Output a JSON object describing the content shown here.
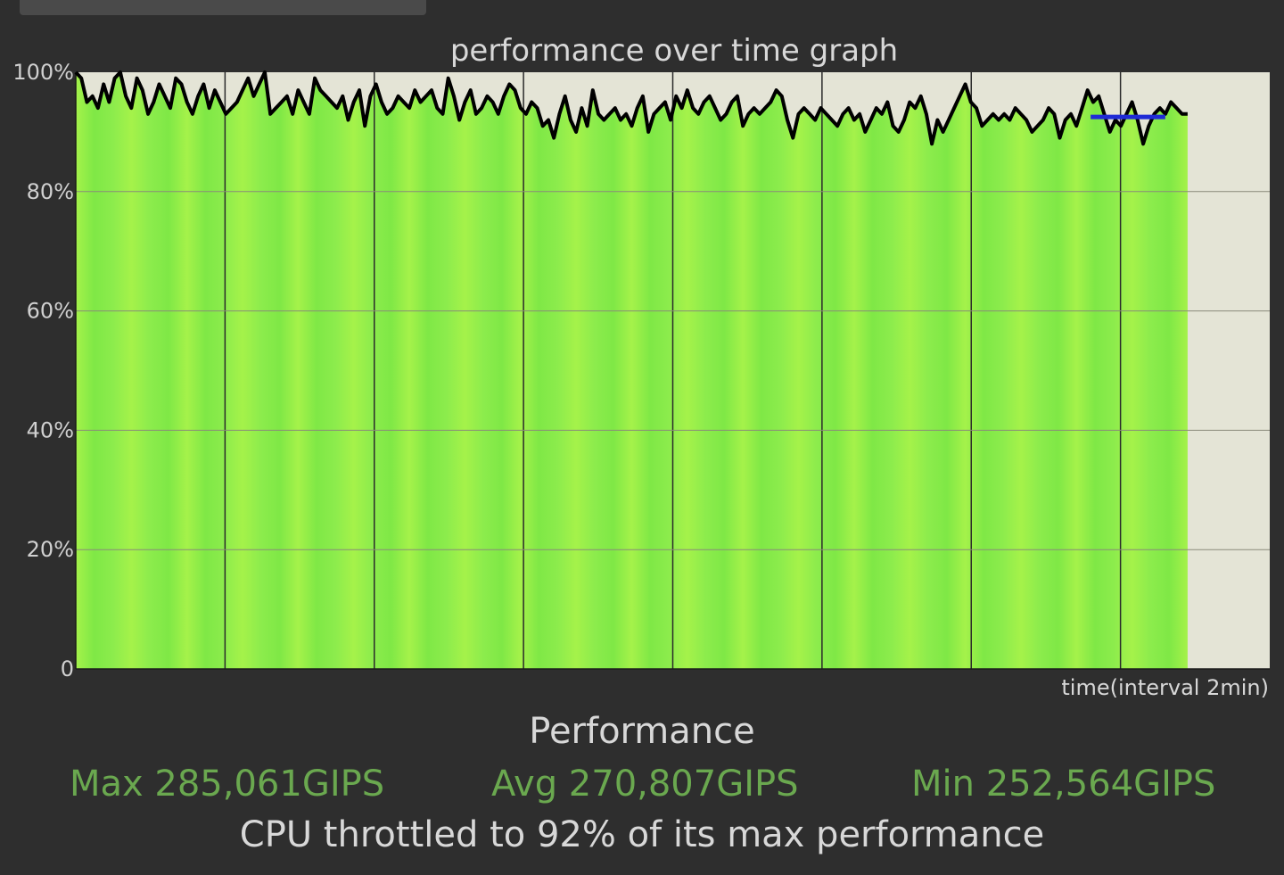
{
  "chart_data": {
    "type": "line",
    "title": "performance over time graph",
    "xlabel": "time(interval 2min)",
    "ylabel": "",
    "ylim": [
      0,
      100
    ],
    "yticks": [
      "0",
      "20%",
      "40%",
      "60%",
      "80%",
      "100%"
    ],
    "grid": true,
    "x_intervals": 8,
    "x_span_intervals": 7.45,
    "series": [
      {
        "values": [
          100,
          99,
          95,
          96,
          94,
          98,
          95,
          99,
          100,
          96,
          94,
          99,
          97,
          93,
          95,
          98,
          96,
          94,
          99,
          98,
          95,
          93,
          96,
          98,
          94,
          97,
          95,
          93,
          94,
          95,
          97,
          99,
          96,
          98,
          100,
          93,
          94,
          95,
          96,
          93,
          97,
          95,
          93,
          99,
          97,
          96,
          95,
          94,
          96,
          92,
          95,
          97,
          91,
          96,
          98,
          95,
          93,
          94,
          96,
          95,
          94,
          97,
          95,
          96,
          97,
          94,
          93,
          99,
          96,
          92,
          95,
          97,
          93,
          94,
          96,
          95,
          93,
          96,
          98,
          97,
          94,
          93,
          95,
          94,
          91,
          92,
          89,
          93,
          96,
          92,
          90,
          94,
          91,
          97,
          93,
          92,
          93,
          94,
          92,
          93,
          91,
          94,
          96,
          90,
          93,
          94,
          95,
          92,
          96,
          94,
          97,
          94,
          93,
          95,
          96,
          94,
          92,
          93,
          95,
          96,
          91,
          93,
          94,
          93,
          94,
          95,
          97,
          96,
          92,
          89,
          93,
          94,
          93,
          92,
          94,
          93,
          92,
          91,
          93,
          94,
          92,
          93,
          90,
          92,
          94,
          93,
          95,
          91,
          90,
          92,
          95,
          94,
          96,
          93,
          88,
          92,
          90,
          92,
          94,
          96,
          98,
          95,
          94,
          91,
          92,
          93,
          92,
          93,
          92,
          94,
          93,
          92,
          90,
          91,
          92,
          94,
          93,
          89,
          92,
          93,
          91,
          94,
          97,
          95,
          96,
          93,
          90,
          92,
          91,
          93,
          95,
          92,
          88,
          91,
          93,
          94,
          93,
          95,
          94,
          93,
          93
        ]
      },
      {
        "x_range": [
          6.8,
          7.3
        ],
        "value": 92.5,
        "color": "#1f2bd6"
      }
    ],
    "colors": {
      "plot_background": "#e4e4d6",
      "area_fill": "#8ef04c",
      "line": "#000000",
      "grid": "#2a2a2a"
    }
  },
  "summary": {
    "heading": "Performance",
    "max": "Max 285,061GIPS",
    "avg": "Avg 270,807GIPS",
    "min": "Min 252,564GIPS",
    "throttle": "CPU throttled to 92% of its max performance"
  }
}
